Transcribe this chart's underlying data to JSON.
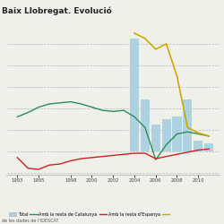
{
  "title": "Baix Llobregat. Evolució",
  "subtitle": "de les dades de l'IDESCAT",
  "years_bars": [
    2004,
    2005,
    2006,
    2007,
    2008,
    2009,
    2010,
    2011
  ],
  "bar_values": [
    10500,
    4800,
    2500,
    3000,
    3200,
    4800,
    1000,
    700
  ],
  "bar_color": "#a8cfe0",
  "years_lines": [
    1993,
    1994,
    1995,
    1996,
    1997,
    1998,
    1999,
    2000,
    2001,
    2002,
    2003,
    2004,
    2005,
    2006,
    2007,
    2008,
    2009,
    2010,
    2011
  ],
  "green_line": [
    3200,
    3600,
    4100,
    4400,
    4500,
    4600,
    4400,
    4100,
    3800,
    3700,
    3800,
    3200,
    2200,
    -800,
    600,
    1600,
    1800,
    1600,
    1400
  ],
  "red_line": [
    -600,
    -1600,
    -1700,
    -1300,
    -1200,
    -900,
    -700,
    -600,
    -500,
    -400,
    -300,
    -200,
    -200,
    -700,
    -500,
    -300,
    -100,
    100,
    200
  ],
  "yellow_line": [
    null,
    null,
    null,
    null,
    null,
    null,
    null,
    null,
    null,
    null,
    null,
    11000,
    10500,
    9500,
    10000,
    7000,
    2200,
    1700,
    1400
  ],
  "line_colors": [
    "#2e8b57",
    "#cc2222",
    "#ccaa00"
  ],
  "legend_labels": [
    "Total",
    "Amb la resta de Catalunya",
    "Amb la resta d'Espanya"
  ],
  "xlim": [
    1992.0,
    2012.0
  ],
  "ylim": [
    -2200,
    12000
  ],
  "xticks": [
    1993,
    1995,
    1998,
    2000,
    2002,
    2004,
    2006,
    2008,
    2010
  ],
  "grid_lines": [
    -2000,
    0,
    2000,
    4000,
    6000,
    8000,
    10000
  ],
  "background": "#f0f0eb",
  "plot_area_bg": "#f0f0eb"
}
